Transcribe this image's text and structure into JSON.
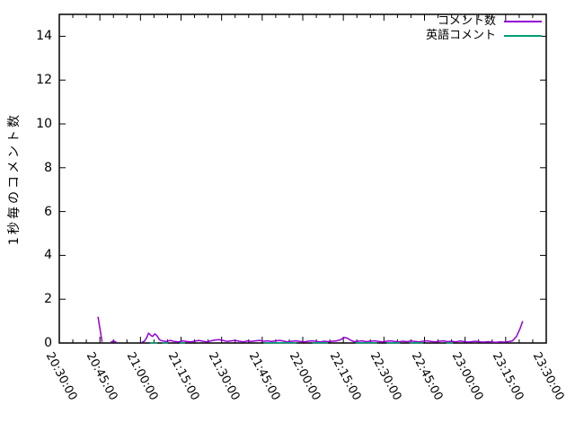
{
  "chart_data": {
    "type": "line",
    "title": "",
    "xlabel": "",
    "ylabel": "1秒毎のコメント数",
    "ylim": [
      0,
      15
    ],
    "y_tick_values": [
      0,
      2,
      4,
      6,
      8,
      10,
      12,
      14
    ],
    "y_tick_labels": [
      "0",
      "2",
      "4",
      "6",
      "8",
      "10",
      "12",
      "14"
    ],
    "x_range_minutes": [
      0,
      180
    ],
    "x_major_step_minutes": 15,
    "x_minor_step_minutes": 5,
    "x_tick_labels": [
      "20:30:00",
      "20:45:00",
      "21:00:00",
      "21:15:00",
      "21:30:00",
      "21:45:00",
      "22:00:00",
      "22:15:00",
      "22:30:00",
      "22:45:00",
      "23:00:00",
      "23:15:00",
      "23:30:00"
    ],
    "grid": false,
    "legend_position": "top-right",
    "axis_color": "#000000",
    "series": [
      {
        "name": "コメント数",
        "color": "#9400d3",
        "segments": [
          [
            [
              14.3,
              1.2
            ],
            [
              15.8,
              0.05
            ]
          ],
          [
            [
              19,
              0.03
            ],
            [
              20,
              0.1
            ],
            [
              21.3,
              0.02
            ]
          ],
          [
            [
              30.5,
              0.03
            ],
            [
              31.5,
              0.08
            ],
            [
              32.3,
              0.25
            ],
            [
              33,
              0.45
            ],
            [
              33.8,
              0.35
            ],
            [
              34.5,
              0.3
            ],
            [
              35.3,
              0.42
            ],
            [
              36.2,
              0.32
            ],
            [
              37,
              0.15
            ],
            [
              38,
              0.1
            ],
            [
              39.5,
              0.07
            ],
            [
              41,
              0.12
            ],
            [
              42.5,
              0.07
            ],
            [
              44,
              0.05
            ],
            [
              45.5,
              0.1
            ],
            [
              47,
              0.07
            ],
            [
              48.5,
              0.05
            ],
            [
              50,
              0.08
            ],
            [
              51.5,
              0.12
            ],
            [
              53,
              0.08
            ],
            [
              54.5,
              0.05
            ],
            [
              56,
              0.1
            ],
            [
              57.5,
              0.13
            ],
            [
              59,
              0.15
            ],
            [
              60.5,
              0.12
            ],
            [
              62,
              0.07
            ],
            [
              63.5,
              0.1
            ],
            [
              65,
              0.12
            ],
            [
              66.5,
              0.08
            ],
            [
              68,
              0.05
            ],
            [
              69.5,
              0.1
            ],
            [
              71,
              0.07
            ],
            [
              72.5,
              0.1
            ],
            [
              74,
              0.12
            ],
            [
              75.5,
              0.08
            ],
            [
              77,
              0.1
            ],
            [
              78.5,
              0.07
            ],
            [
              80,
              0.1
            ],
            [
              81.5,
              0.12
            ],
            [
              83,
              0.08
            ],
            [
              84.5,
              0.05
            ],
            [
              86,
              0.08
            ],
            [
              87.5,
              0.1
            ],
            [
              89,
              0.07
            ],
            [
              90.5,
              0.05
            ],
            [
              92,
              0.08
            ],
            [
              93.5,
              0.1
            ],
            [
              95,
              0.07
            ],
            [
              96.5,
              0.05
            ],
            [
              98,
              0.08
            ],
            [
              99.5,
              0.06
            ],
            [
              101,
              0.08
            ],
            [
              102.5,
              0.1
            ],
            [
              104,
              0.15
            ],
            [
              105.3,
              0.25
            ],
            [
              106.5,
              0.22
            ],
            [
              107.8,
              0.12
            ],
            [
              109,
              0.06
            ],
            [
              110.5,
              0.08
            ],
            [
              112,
              0.1
            ],
            [
              113.5,
              0.06
            ],
            [
              115,
              0.08
            ],
            [
              116.5,
              0.1
            ],
            [
              118,
              0.07
            ],
            [
              119.5,
              0.05
            ],
            [
              121,
              0.08
            ],
            [
              122.5,
              0.1
            ],
            [
              124,
              0.07
            ],
            [
              125.5,
              0.05
            ],
            [
              127,
              0.08
            ],
            [
              128.5,
              0.06
            ],
            [
              130,
              0.09
            ],
            [
              131.5,
              0.07
            ],
            [
              133,
              0.05
            ],
            [
              134.5,
              0.08
            ],
            [
              136,
              0.1
            ],
            [
              137.5,
              0.07
            ],
            [
              139,
              0.05
            ],
            [
              140.5,
              0.08
            ],
            [
              142,
              0.1
            ],
            [
              143.5,
              0.06
            ],
            [
              145,
              0.08
            ],
            [
              146.5,
              0.05
            ],
            [
              148,
              0.09
            ],
            [
              149.5,
              0.07
            ],
            [
              151,
              0.04
            ],
            [
              152.5,
              0.06
            ],
            [
              154,
              0.08
            ],
            [
              155.5,
              0.05
            ],
            [
              157,
              0.04
            ],
            [
              158.5,
              0.06
            ],
            [
              160,
              0.04
            ],
            [
              161.5,
              0.03
            ],
            [
              163,
              0.05
            ],
            [
              164.5,
              0.04
            ],
            [
              166,
              0.06
            ],
            [
              167.5,
              0.1
            ],
            [
              169,
              0.3
            ],
            [
              170.3,
              0.65
            ],
            [
              171.3,
              1.0
            ]
          ]
        ]
      },
      {
        "name": "英語コメント",
        "color": "#009e73",
        "segments": [
          [
            [
              33.5,
              0.01
            ],
            [
              36.3,
              0.01
            ]
          ],
          [
            [
              38,
              0.01
            ],
            [
              40.2,
              0.01
            ]
          ],
          [
            [
              44.5,
              0.01
            ],
            [
              46.5,
              0.01
            ]
          ],
          [
            [
              75.5,
              0.01
            ],
            [
              87.7,
              0.01
            ]
          ],
          [
            [
              93.5,
              0.01
            ],
            [
              99.3,
              0.01
            ]
          ],
          [
            [
              109.5,
              0.01
            ],
            [
              117.5,
              0.01
            ]
          ],
          [
            [
              121,
              0.01
            ],
            [
              126,
              0.01
            ]
          ],
          [
            [
              129.5,
              0.01
            ],
            [
              134.5,
              0.01
            ]
          ],
          [
            [
              143,
              0.01
            ],
            [
              145.5,
              0.01
            ]
          ]
        ]
      }
    ]
  }
}
